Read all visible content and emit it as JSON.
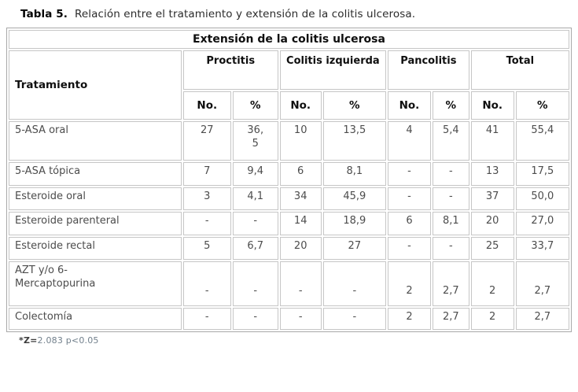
{
  "title": {
    "label": "Tabla 5.",
    "text": "Relación entre el tratamiento y extensión de la colitis ulcerosa."
  },
  "table": {
    "caption": "Extensión de la colitis ulcerosa",
    "row_header": "Tratamiento",
    "groups": [
      {
        "label": "Proctitis",
        "cols": [
          "No.",
          "%"
        ]
      },
      {
        "label": "Colitis izquierda",
        "cols": [
          "No.",
          "%"
        ]
      },
      {
        "label": "Pancolitis",
        "cols": [
          "No.",
          "%"
        ]
      },
      {
        "label": "Total",
        "cols": [
          "No.",
          "%"
        ]
      }
    ],
    "rows": [
      {
        "label": "5-ASA oral",
        "values": [
          "27",
          "36,\n5",
          "10",
          "13,5",
          "4",
          "5,4",
          "41",
          "55,4"
        ]
      },
      {
        "label": "5-ASA tópica",
        "values": [
          "7",
          "9,4",
          "6",
          "8,1",
          "-",
          "-",
          "13",
          "17,5"
        ]
      },
      {
        "label": "Esteroide oral",
        "values": [
          "3",
          "4,1",
          "34",
          "45,9",
          "-",
          "-",
          "37",
          "50,0"
        ]
      },
      {
        "label": "Esteroide parenteral",
        "values": [
          "-",
          "-",
          "14",
          "18,9",
          "6",
          "8,1",
          "20",
          "27,0"
        ]
      },
      {
        "label": "Esteroide rectal",
        "values": [
          "5",
          "6,7",
          "20",
          "27",
          "-",
          "-",
          "25",
          "33,7"
        ]
      },
      {
        "label": "AZT y/o 6-\nMercaptopurina",
        "values": [
          "-",
          "-",
          "-",
          "-",
          "2",
          "2,7",
          "2",
          "2,7"
        ]
      },
      {
        "label": "Colectomía",
        "values": [
          "-",
          "-",
          "-",
          "-",
          "2",
          "2,7",
          "2",
          "2,7"
        ]
      }
    ]
  },
  "footnote": {
    "prefix": "*Z=",
    "text": "2.083 p<0.05"
  },
  "colors": {
    "outer_border": "#a8a8a8",
    "cell_border": "#c6c6c6",
    "header_text": "#0f0f0f",
    "data_text": "#4c4c4c",
    "footnote_text": "#72808c"
  },
  "chart_data": {
    "type": "table",
    "title": "Tabla 5. Relación entre el tratamiento y extensión de la colitis ulcerosa.",
    "column_groups": [
      "Proctitis",
      "Colitis izquierda",
      "Pancolitis",
      "Total"
    ],
    "columns": [
      "Tratamiento",
      "Proctitis No.",
      "Proctitis %",
      "Colitis izquierda No.",
      "Colitis izquierda %",
      "Pancolitis No.",
      "Pancolitis %",
      "Total No.",
      "Total %"
    ],
    "rows": [
      [
        "5-ASA oral",
        "27",
        "36,5",
        "10",
        "13,5",
        "4",
        "5,4",
        "41",
        "55,4"
      ],
      [
        "5-ASA tópica",
        "7",
        "9,4",
        "6",
        "8,1",
        "-",
        "-",
        "13",
        "17,5"
      ],
      [
        "Esteroide oral",
        "3",
        "4,1",
        "34",
        "45,9",
        "-",
        "-",
        "37",
        "50,0"
      ],
      [
        "Esteroide parenteral",
        "-",
        "-",
        "14",
        "18,9",
        "6",
        "8,1",
        "20",
        "27,0"
      ],
      [
        "Esteroide rectal",
        "5",
        "6,7",
        "20",
        "27",
        "-",
        "-",
        "25",
        "33,7"
      ],
      [
        "AZT y/o 6-Mercaptopurina",
        "-",
        "-",
        "-",
        "-",
        "2",
        "2,7",
        "2",
        "2,7"
      ],
      [
        "Colectomía",
        "-",
        "-",
        "-",
        "-",
        "2",
        "2,7",
        "2",
        "2,7"
      ]
    ],
    "footnote": "*Z=2.083 p<0.05"
  }
}
